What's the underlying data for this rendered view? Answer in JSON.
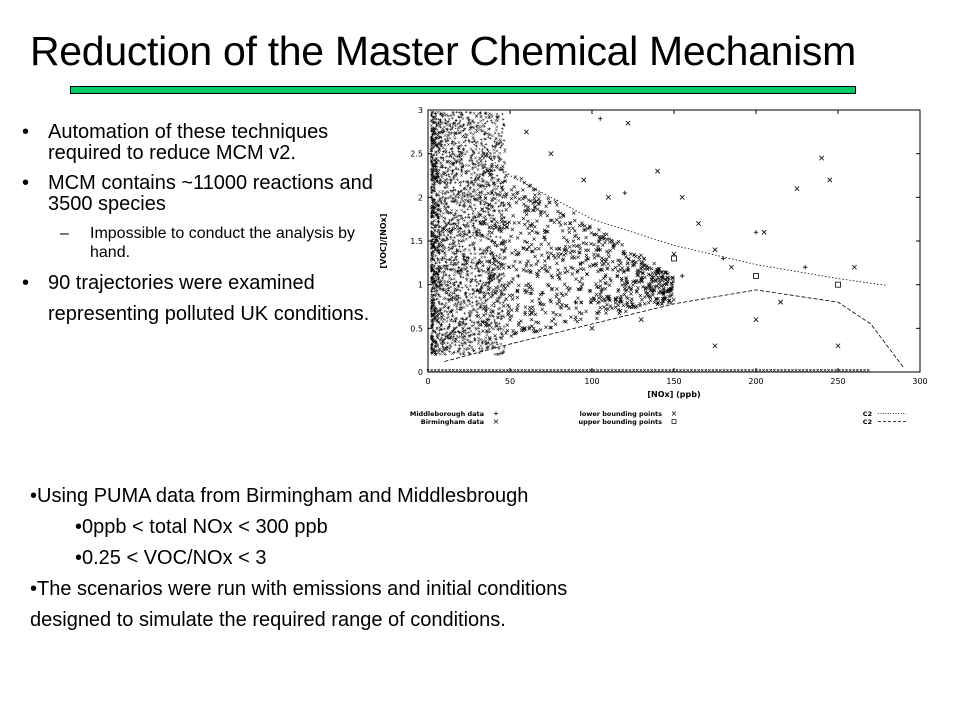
{
  "slide": {
    "title": "Reduction of the Master Chemical Mechanism",
    "accent_color": "#00cc66"
  },
  "bullets": [
    {
      "bullet": "•",
      "text": "Automation of these techniques required to reduce MCM v2."
    },
    {
      "bullet": "•",
      "text": "MCM contains ~11000 reactions and 3500 species"
    },
    {
      "bullet": "–",
      "text": "Impossible to conduct the analysis by hand."
    },
    {
      "bullet": "•",
      "text": "90 trajectories were examined representing polluted UK conditions."
    }
  ],
  "bottom": {
    "line1": "•Using PUMA data from Birmingham and Middlesbrough",
    "line2": "•0ppb < total NOx < 300 ppb",
    "line3": "•0.25 < VOC/NOx < 3",
    "line4": "•The scenarios were run with emissions and initial conditions",
    "line5": "designed to simulate the required range of conditions."
  },
  "chart_data": {
    "type": "scatter",
    "xlabel": "[NOx] (ppb)",
    "ylabel": "[VOC]/[NOx]",
    "xlim": [
      0,
      300
    ],
    "ylim": [
      0,
      3
    ],
    "xticks": [
      "0",
      "50",
      "100",
      "150",
      "200",
      "250",
      "300"
    ],
    "yticks": [
      "0",
      "0.5",
      "1",
      "1.5",
      "2",
      "2.5",
      "3"
    ],
    "legend_position": "bottom",
    "series": [
      {
        "name": "Middleborough data",
        "marker": "+",
        "density_note": "dense cluster at NOx 5-40 ppb, ratio 0.3-3"
      },
      {
        "name": "Birmingham data",
        "marker": "x",
        "density_note": "spread from NOx 0 to 260 ppb, ratio 0-3"
      },
      {
        "name": "lower bounding points",
        "marker": "asterisk"
      },
      {
        "name": "upper bounding points",
        "marker": "square",
        "x": [
          150,
          200,
          250
        ],
        "y": [
          1.3,
          1.1,
          1.0
        ]
      },
      {
        "name": "C2",
        "style": "dotted",
        "x": [
          10,
          50,
          100,
          150,
          200,
          250,
          280
        ],
        "y": [
          2.9,
          2.25,
          1.75,
          1.45,
          1.23,
          1.07,
          0.99
        ]
      },
      {
        "name": "C2",
        "style": "dashed",
        "x": [
          10,
          50,
          100,
          150,
          200,
          250,
          270,
          290
        ],
        "y": [
          0.12,
          0.32,
          0.55,
          0.78,
          0.94,
          0.8,
          0.55,
          0.05
        ]
      }
    ],
    "sample_points": {
      "plus": [
        [
          8,
          2.6
        ],
        [
          14,
          2.2
        ],
        [
          22,
          1.9
        ],
        [
          30,
          1.6
        ],
        [
          40,
          1.3
        ],
        [
          55,
          1.1
        ],
        [
          70,
          0.9
        ],
        [
          90,
          0.8
        ],
        [
          105,
          2.9
        ],
        [
          120,
          2.05
        ],
        [
          155,
          1.1
        ],
        [
          180,
          1.3
        ],
        [
          200,
          1.6
        ],
        [
          230,
          1.2
        ]
      ],
      "x": [
        [
          60,
          2.75
        ],
        [
          75,
          2.5
        ],
        [
          95,
          2.2
        ],
        [
          110,
          2.0
        ],
        [
          122,
          2.85
        ],
        [
          140,
          2.3
        ],
        [
          155,
          2.0
        ],
        [
          165,
          1.7
        ],
        [
          175,
          1.4
        ],
        [
          185,
          1.2
        ],
        [
          200,
          0.6
        ],
        [
          215,
          0.8
        ],
        [
          225,
          2.1
        ],
        [
          240,
          2.45
        ],
        [
          245,
          2.2
        ],
        [
          250,
          0.3
        ],
        [
          260,
          1.2
        ],
        [
          175,
          0.3
        ],
        [
          205,
          1.6
        ],
        [
          100,
          0.5
        ],
        [
          130,
          0.6
        ],
        [
          150,
          1.35
        ]
      ]
    }
  }
}
